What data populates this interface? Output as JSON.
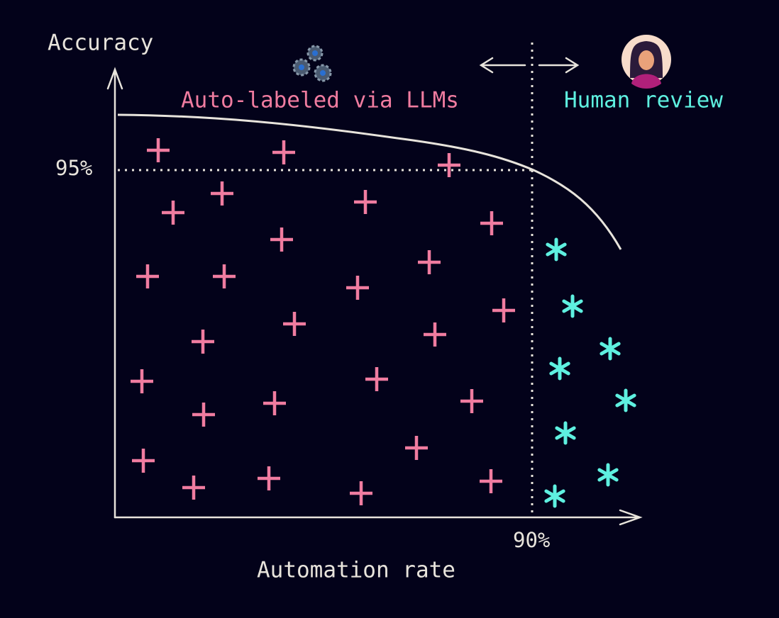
{
  "axes": {
    "y_label": "Accuracy",
    "x_label": "Automation rate",
    "y_threshold": "95%",
    "x_threshold": "90%"
  },
  "regions": {
    "auto": "Auto-labeled via LLMs",
    "human": "Human review"
  }
}
